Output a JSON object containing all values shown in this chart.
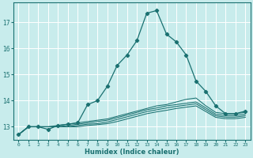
{
  "xlabel": "Humidex (Indice chaleur)",
  "bg_color": "#c8ecec",
  "grid_color": "#ffffff",
  "line_color": "#1a7070",
  "xlim": [
    -0.5,
    23.5
  ],
  "ylim": [
    12.5,
    17.75
  ],
  "yticks": [
    13,
    14,
    15,
    16,
    17
  ],
  "xticks": [
    0,
    1,
    2,
    3,
    4,
    5,
    6,
    7,
    8,
    9,
    10,
    11,
    12,
    13,
    14,
    15,
    16,
    17,
    18,
    19,
    20,
    21,
    22,
    23
  ],
  "series": [
    {
      "x": [
        0,
        1,
        2,
        3,
        4,
        5,
        6,
        7,
        8,
        9,
        10,
        11,
        12,
        13,
        14,
        15,
        16,
        17,
        18,
        19,
        20,
        21,
        22,
        23
      ],
      "y": [
        12.7,
        13.0,
        13.0,
        12.9,
        13.05,
        13.1,
        13.15,
        13.85,
        14.0,
        14.55,
        15.35,
        15.75,
        16.3,
        17.35,
        17.45,
        16.55,
        16.25,
        15.75,
        14.75,
        14.35,
        13.8,
        13.5,
        13.5,
        13.6
      ],
      "marker": true
    },
    {
      "x": [
        0,
        1,
        2,
        3,
        4,
        5,
        6,
        7,
        8,
        9,
        10,
        11,
        12,
        13,
        14,
        15,
        16,
        17,
        18,
        19,
        20,
        21,
        22,
        23
      ],
      "y": [
        12.7,
        13.0,
        13.0,
        13.0,
        13.05,
        13.1,
        13.15,
        13.2,
        13.25,
        13.3,
        13.4,
        13.5,
        13.6,
        13.7,
        13.8,
        13.85,
        13.95,
        14.05,
        14.1,
        13.8,
        13.55,
        13.5,
        13.5,
        13.55
      ],
      "marker": false
    },
    {
      "x": [
        0,
        1,
        2,
        3,
        4,
        5,
        6,
        7,
        8,
        9,
        10,
        11,
        12,
        13,
        14,
        15,
        16,
        17,
        18,
        19,
        20,
        21,
        22,
        23
      ],
      "y": [
        12.7,
        13.0,
        13.0,
        13.0,
        13.0,
        13.05,
        13.1,
        13.15,
        13.2,
        13.25,
        13.35,
        13.45,
        13.55,
        13.65,
        13.72,
        13.8,
        13.85,
        13.9,
        13.95,
        13.72,
        13.48,
        13.43,
        13.43,
        13.48
      ],
      "marker": false
    },
    {
      "x": [
        0,
        1,
        2,
        3,
        4,
        5,
        6,
        7,
        8,
        9,
        10,
        11,
        12,
        13,
        14,
        15,
        16,
        17,
        18,
        19,
        20,
        21,
        22,
        23
      ],
      "y": [
        12.7,
        13.0,
        13.0,
        13.0,
        13.0,
        13.0,
        13.05,
        13.1,
        13.12,
        13.18,
        13.28,
        13.38,
        13.48,
        13.58,
        13.65,
        13.72,
        13.78,
        13.83,
        13.88,
        13.65,
        13.42,
        13.37,
        13.37,
        13.42
      ],
      "marker": false
    },
    {
      "x": [
        0,
        1,
        2,
        3,
        4,
        5,
        6,
        7,
        8,
        9,
        10,
        11,
        12,
        13,
        14,
        15,
        16,
        17,
        18,
        19,
        20,
        21,
        22,
        23
      ],
      "y": [
        12.7,
        13.0,
        13.0,
        13.0,
        13.0,
        13.0,
        13.0,
        13.05,
        13.08,
        13.12,
        13.2,
        13.3,
        13.4,
        13.5,
        13.57,
        13.63,
        13.7,
        13.75,
        13.8,
        13.58,
        13.36,
        13.31,
        13.31,
        13.36
      ],
      "marker": false
    }
  ]
}
